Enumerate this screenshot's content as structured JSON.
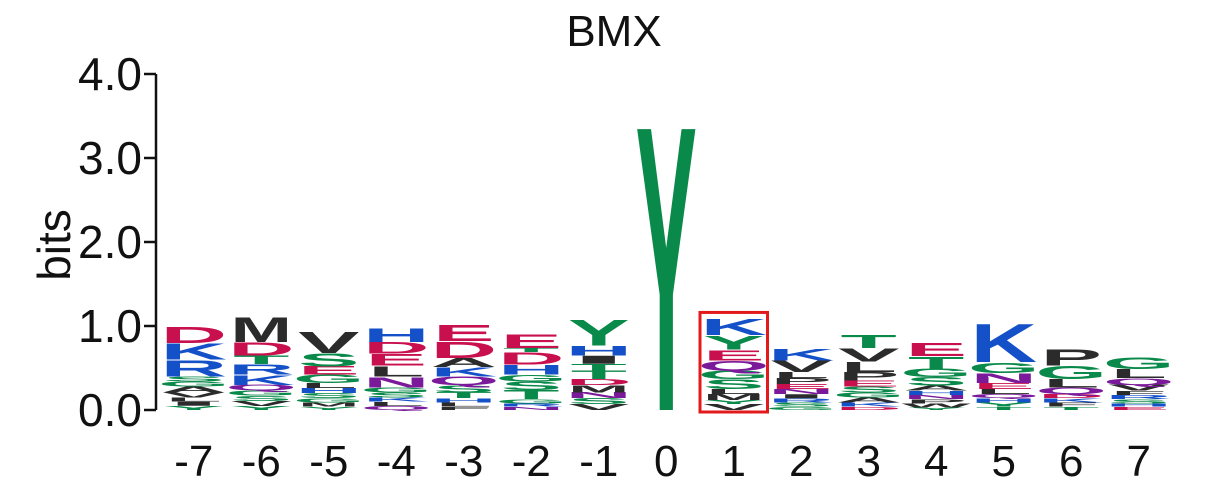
{
  "chart_data": {
    "type": "sequence_logo",
    "title": "BMX",
    "ylabel": "bits",
    "ylim": [
      0,
      4
    ],
    "yticks": [
      "0.0",
      "1.0",
      "2.0",
      "3.0",
      "4.0"
    ],
    "ytick_values": [
      0,
      1,
      2,
      3,
      4
    ],
    "positions": [
      "-7",
      "-6",
      "-5",
      "-4",
      "-3",
      "-2",
      "-1",
      "0",
      "1",
      "2",
      "3",
      "4",
      "5",
      "6",
      "7"
    ],
    "highlight_position": "1",
    "highlight_color": "#e31a1c",
    "colors": {
      "acidic_DE": "#c8104e",
      "basic_HKR": "#1450c8",
      "polar_STGCNQY": "#0a8a4a",
      "amide_NQ": "#7a1a9a",
      "hydrophobic": "#2b2b2b"
    },
    "stacks": [
      {
        "position": "-7",
        "letters": [
          {
            "aa": "Y",
            "h": 0.05
          },
          {
            "aa": "I",
            "h": 0.05
          },
          {
            "aa": "L",
            "h": 0.05
          },
          {
            "aa": "V",
            "h": 0.06
          },
          {
            "aa": "A",
            "h": 0.07
          },
          {
            "aa": "G",
            "h": 0.06
          },
          {
            "aa": "S",
            "h": 0.06
          },
          {
            "aa": "R",
            "h": 0.2
          },
          {
            "aa": "K",
            "h": 0.2
          },
          {
            "aa": "D",
            "h": 0.2
          }
        ]
      },
      {
        "position": "-6",
        "letters": [
          {
            "aa": "Y",
            "h": 0.05
          },
          {
            "aa": "V",
            "h": 0.06
          },
          {
            "aa": "S",
            "h": 0.06
          },
          {
            "aa": "G",
            "h": 0.06
          },
          {
            "aa": "Q",
            "h": 0.07
          },
          {
            "aa": "K",
            "h": 0.12
          },
          {
            "aa": "R",
            "h": 0.13
          },
          {
            "aa": "T",
            "h": 0.1
          },
          {
            "aa": "D",
            "h": 0.16
          },
          {
            "aa": "M",
            "h": 0.3
          }
        ]
      },
      {
        "position": "-5",
        "letters": [
          {
            "aa": "Y",
            "h": 0.04
          },
          {
            "aa": "M",
            "h": 0.05
          },
          {
            "aa": "G",
            "h": 0.05
          },
          {
            "aa": "S",
            "h": 0.06
          },
          {
            "aa": "H",
            "h": 0.06
          },
          {
            "aa": "L",
            "h": 0.06
          },
          {
            "aa": "G",
            "h": 0.1
          },
          {
            "aa": "E",
            "h": 0.1
          },
          {
            "aa": "S",
            "h": 0.16
          },
          {
            "aa": "V",
            "h": 0.26
          }
        ]
      },
      {
        "position": "-4",
        "letters": [
          {
            "aa": "Q",
            "h": 0.05
          },
          {
            "aa": "L",
            "h": 0.05
          },
          {
            "aa": "K",
            "h": 0.05
          },
          {
            "aa": "S",
            "h": 0.06
          },
          {
            "aa": "G",
            "h": 0.06
          },
          {
            "aa": "N",
            "h": 0.13
          },
          {
            "aa": "L",
            "h": 0.13
          },
          {
            "aa": "E",
            "h": 0.14
          },
          {
            "aa": "D",
            "h": 0.14
          },
          {
            "aa": "H",
            "h": 0.17
          }
        ]
      },
      {
        "position": "-3",
        "letters": [
          {
            "aa": "F",
            "h": 0.04
          },
          {
            "aa": "L",
            "h": 0.05
          },
          {
            "aa": "H",
            "h": 0.05
          },
          {
            "aa": "T",
            "h": 0.07
          },
          {
            "aa": "S",
            "h": 0.09
          },
          {
            "aa": "Q",
            "h": 0.1
          },
          {
            "aa": "K",
            "h": 0.11
          },
          {
            "aa": "A",
            "h": 0.11
          },
          {
            "aa": "D",
            "h": 0.2
          },
          {
            "aa": "E",
            "h": 0.2
          }
        ]
      },
      {
        "position": "-2",
        "letters": [
          {
            "aa": "N",
            "h": 0.04
          },
          {
            "aa": "R",
            "h": 0.04
          },
          {
            "aa": "G",
            "h": 0.05
          },
          {
            "aa": "T",
            "h": 0.11
          },
          {
            "aa": "S",
            "h": 0.1
          },
          {
            "aa": "G",
            "h": 0.08
          },
          {
            "aa": "H",
            "h": 0.12
          },
          {
            "aa": "D",
            "h": 0.15
          },
          {
            "aa": "T",
            "h": 0.05
          },
          {
            "aa": "E",
            "h": 0.17
          }
        ]
      },
      {
        "position": "-1",
        "letters": [
          {
            "aa": "V",
            "h": 0.07
          },
          {
            "aa": "S",
            "h": 0.07
          },
          {
            "aa": "N",
            "h": 0.07
          },
          {
            "aa": "M",
            "h": 0.09
          },
          {
            "aa": "D",
            "h": 0.07
          },
          {
            "aa": "T",
            "h": 0.1
          },
          {
            "aa": "T",
            "h": 0.08
          },
          {
            "aa": "I",
            "h": 0.1
          },
          {
            "aa": "H",
            "h": 0.12
          },
          {
            "aa": "Y",
            "h": 0.32
          }
        ]
      },
      {
        "position": "0",
        "letters": [
          {
            "aa": "Y",
            "h": 3.5
          }
        ]
      },
      {
        "position": "1",
        "letters": [
          {
            "aa": "V",
            "h": 0.07
          },
          {
            "aa": "Y",
            "h": 0.05
          },
          {
            "aa": "M",
            "h": 0.07
          },
          {
            "aa": "L",
            "h": 0.06
          },
          {
            "aa": "S",
            "h": 0.12
          },
          {
            "aa": "G",
            "h": 0.1
          },
          {
            "aa": "Q",
            "h": 0.12
          },
          {
            "aa": "E",
            "h": 0.13
          },
          {
            "aa": "Y",
            "h": 0.17
          },
          {
            "aa": "K",
            "h": 0.2
          }
        ]
      },
      {
        "position": "2",
        "letters": [
          {
            "aa": "G",
            "h": 0.04
          },
          {
            "aa": "S",
            "h": 0.05
          },
          {
            "aa": "R",
            "h": 0.05
          },
          {
            "aa": "I",
            "h": 0.05
          },
          {
            "aa": "N",
            "h": 0.06
          },
          {
            "aa": "E",
            "h": 0.06
          },
          {
            "aa": "P",
            "h": 0.07
          },
          {
            "aa": "L",
            "h": 0.07
          },
          {
            "aa": "V",
            "h": 0.14
          },
          {
            "aa": "K",
            "h": 0.14
          }
        ]
      },
      {
        "position": "3",
        "letters": [
          {
            "aa": "D",
            "h": 0.04
          },
          {
            "aa": "K",
            "h": 0.05
          },
          {
            "aa": "A",
            "h": 0.06
          },
          {
            "aa": "G",
            "h": 0.06
          },
          {
            "aa": "S",
            "h": 0.07
          },
          {
            "aa": "E",
            "h": 0.07
          },
          {
            "aa": "P",
            "h": 0.1
          },
          {
            "aa": "L",
            "h": 0.13
          },
          {
            "aa": "V",
            "h": 0.16
          },
          {
            "aa": "T",
            "h": 0.16
          }
        ]
      },
      {
        "position": "4",
        "letters": [
          {
            "aa": "Y",
            "h": 0.03
          },
          {
            "aa": "W",
            "h": 0.05
          },
          {
            "aa": "P",
            "h": 0.05
          },
          {
            "aa": "N",
            "h": 0.05
          },
          {
            "aa": "H",
            "h": 0.05
          },
          {
            "aa": "A",
            "h": 0.06
          },
          {
            "aa": "S",
            "h": 0.1
          },
          {
            "aa": "G",
            "h": 0.1
          },
          {
            "aa": "T",
            "h": 0.15
          },
          {
            "aa": "E",
            "h": 0.16
          }
        ]
      },
      {
        "position": "5",
        "letters": [
          {
            "aa": "T",
            "h": 0.04
          },
          {
            "aa": "Y",
            "h": 0.05
          },
          {
            "aa": "H",
            "h": 0.05
          },
          {
            "aa": "Q",
            "h": 0.05
          },
          {
            "aa": "L",
            "h": 0.06
          },
          {
            "aa": "E",
            "h": 0.07
          },
          {
            "aa": "N",
            "h": 0.12
          },
          {
            "aa": "G",
            "h": 0.13
          },
          {
            "aa": "K",
            "h": 0.47
          }
        ]
      },
      {
        "position": "6",
        "letters": [
          {
            "aa": "T",
            "h": 0.04
          },
          {
            "aa": "F",
            "h": 0.05
          },
          {
            "aa": "K",
            "h": 0.05
          },
          {
            "aa": "D",
            "h": 0.05
          },
          {
            "aa": "Q",
            "h": 0.08
          },
          {
            "aa": "L",
            "h": 0.1
          },
          {
            "aa": "G",
            "h": 0.16
          },
          {
            "aa": "P",
            "h": 0.2
          }
        ]
      },
      {
        "position": "7",
        "letters": [
          {
            "aa": "E",
            "h": 0.04
          },
          {
            "aa": "H",
            "h": 0.04
          },
          {
            "aa": "S",
            "h": 0.05
          },
          {
            "aa": "R",
            "h": 0.05
          },
          {
            "aa": "F",
            "h": 0.05
          },
          {
            "aa": "V",
            "h": 0.07
          },
          {
            "aa": "Q",
            "h": 0.08
          },
          {
            "aa": "L",
            "h": 0.11
          },
          {
            "aa": "G",
            "h": 0.14
          }
        ]
      }
    ]
  }
}
